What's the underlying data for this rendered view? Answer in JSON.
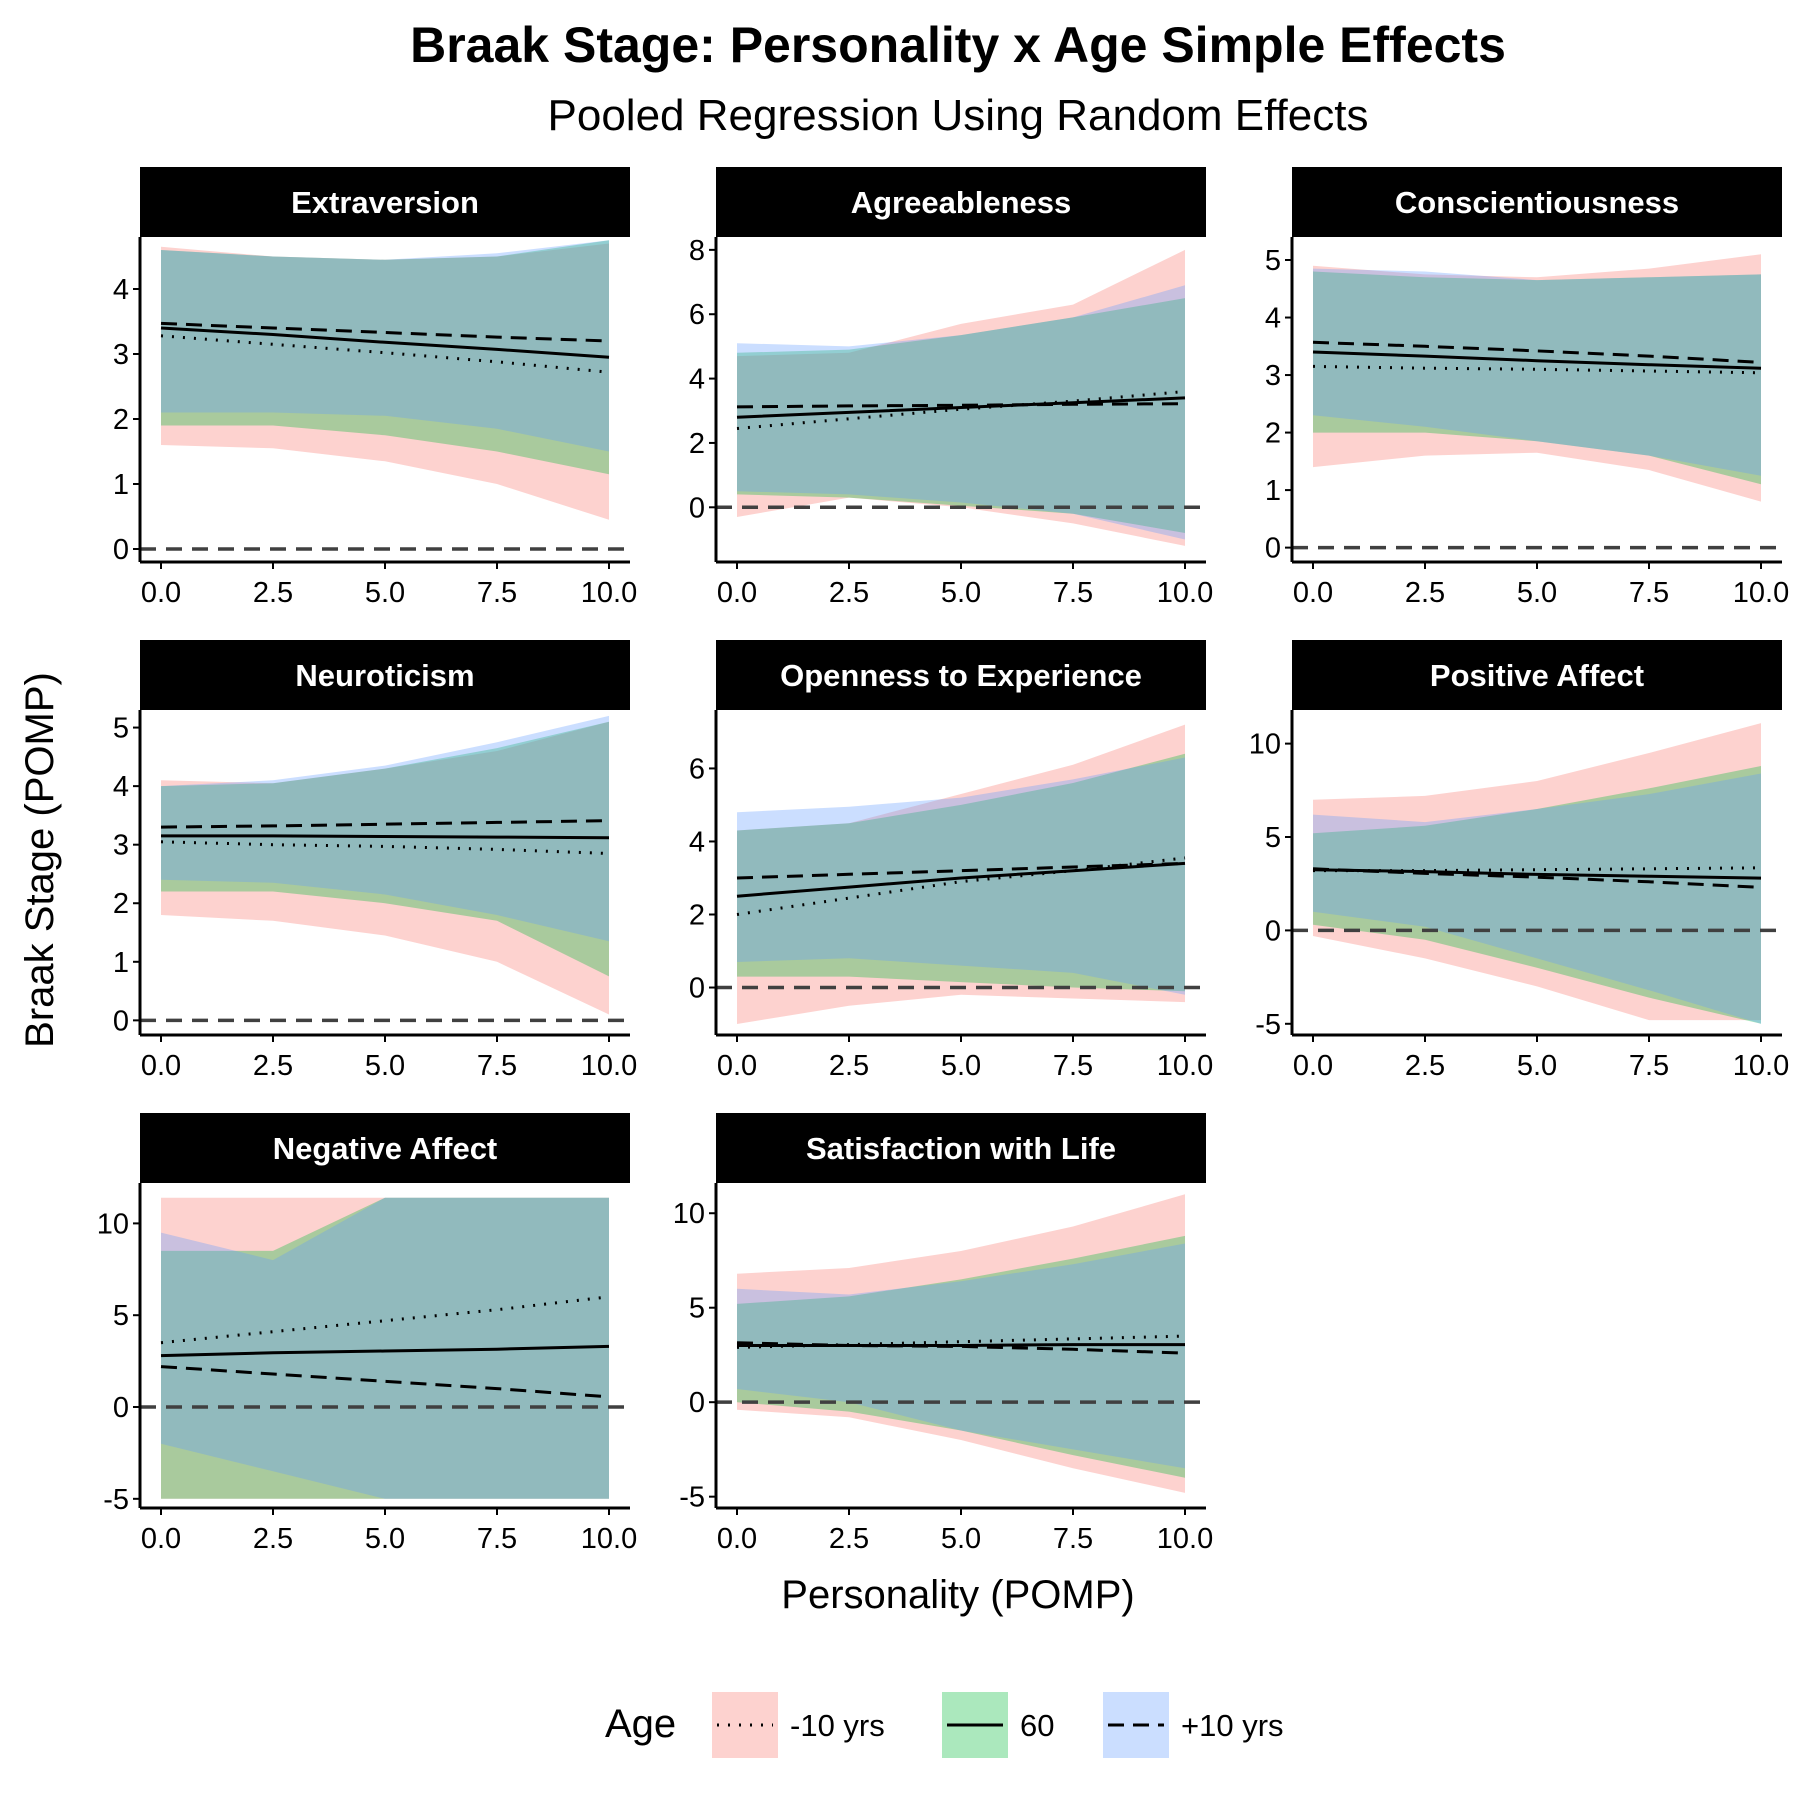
{
  "title": "Braak Stage: Personality x Age Simple Effects",
  "subtitle": "Pooled Regression Using Random Effects",
  "xlabel": "Personality (POMP)",
  "ylabel": "Braak Stage (POMP)",
  "legend": {
    "title": "Age",
    "items": [
      {
        "label": "-10 yrs",
        "linetype": "dotted",
        "fill": "#f8766d"
      },
      {
        "label": "60",
        "linetype": "solid",
        "fill": "#00ba38"
      },
      {
        "label": "+10 yrs",
        "linetype": "dashed",
        "fill": "#619cff"
      }
    ]
  },
  "colors": {
    "ribbon_minus10": "#f8766d",
    "ribbon_60": "#00ba38",
    "ribbon_plus10": "#619cff",
    "strip_bg": "#000000",
    "strip_text": "#ffffff",
    "zero_line": "#404040"
  },
  "chart_data": [
    {
      "type": "line",
      "panel": "Extraversion",
      "xlim": [
        0,
        10
      ],
      "ylim": [
        -0.2,
        4.8
      ],
      "y_ticks": [
        0,
        1,
        2,
        3,
        4
      ],
      "x_ticks": [
        0,
        2.5,
        5,
        7.5,
        10
      ],
      "x_tick_labels": [
        "0.0",
        "2.5",
        "5.0",
        "7.5",
        "10.0"
      ],
      "x": [
        0,
        2.5,
        5,
        7.5,
        10
      ],
      "series": [
        {
          "name": "-10 yrs",
          "line": [
            3.28,
            3.15,
            3.02,
            2.88,
            2.72
          ],
          "lower": [
            1.6,
            1.55,
            1.35,
            1.0,
            0.45
          ],
          "upper": [
            4.65,
            4.5,
            4.45,
            4.5,
            4.7
          ]
        },
        {
          "name": "60",
          "line": [
            3.4,
            3.3,
            3.18,
            3.07,
            2.95
          ],
          "lower": [
            1.9,
            1.9,
            1.75,
            1.5,
            1.15
          ],
          "upper": [
            4.6,
            4.5,
            4.45,
            4.5,
            4.75
          ]
        },
        {
          "name": "+10 yrs",
          "line": [
            3.47,
            3.4,
            3.33,
            3.26,
            3.2
          ],
          "lower": [
            2.1,
            2.1,
            2.05,
            1.85,
            1.5
          ],
          "upper": [
            4.6,
            4.5,
            4.45,
            4.55,
            4.75
          ]
        }
      ]
    },
    {
      "type": "line",
      "panel": "Agreeableness",
      "xlim": [
        0,
        10
      ],
      "ylim": [
        -1.7,
        8.4
      ],
      "y_ticks": [
        0,
        2,
        4,
        6,
        8
      ],
      "x_ticks": [
        0,
        2.5,
        5,
        7.5,
        10
      ],
      "x_tick_labels": [
        "0.0",
        "2.5",
        "5.0",
        "7.5",
        "10.0"
      ],
      "x": [
        0,
        2.5,
        5,
        7.5,
        10
      ],
      "series": [
        {
          "name": "-10 yrs",
          "line": [
            2.45,
            2.75,
            3.05,
            3.3,
            3.6
          ],
          "lower": [
            -0.3,
            0.3,
            0.0,
            -0.5,
            -1.2
          ],
          "upper": [
            4.7,
            4.8,
            5.7,
            6.3,
            8.0
          ]
        },
        {
          "name": "60",
          "line": [
            2.8,
            2.95,
            3.1,
            3.25,
            3.4
          ],
          "lower": [
            0.4,
            0.3,
            0.05,
            -0.2,
            -0.8
          ],
          "upper": [
            4.8,
            4.9,
            5.35,
            5.9,
            6.5
          ]
        },
        {
          "name": "+10 yrs",
          "line": [
            3.12,
            3.15,
            3.17,
            3.2,
            3.22
          ],
          "lower": [
            0.5,
            0.4,
            0.15,
            -0.2,
            -1.0
          ],
          "upper": [
            5.1,
            5.0,
            5.35,
            5.9,
            6.9
          ]
        }
      ]
    },
    {
      "type": "line",
      "panel": "Conscientiousness",
      "xlim": [
        0,
        10
      ],
      "ylim": [
        -0.25,
        5.4
      ],
      "y_ticks": [
        0,
        1,
        2,
        3,
        4,
        5
      ],
      "x_ticks": [
        0,
        2.5,
        5,
        7.5,
        10
      ],
      "x_tick_labels": [
        "0.0",
        "2.5",
        "5.0",
        "7.5",
        "10.0"
      ],
      "x": [
        0,
        2.5,
        5,
        7.5,
        10
      ],
      "series": [
        {
          "name": "-10 yrs",
          "line": [
            3.15,
            3.12,
            3.1,
            3.07,
            3.04
          ],
          "lower": [
            1.4,
            1.6,
            1.65,
            1.35,
            0.8
          ],
          "upper": [
            4.9,
            4.75,
            4.7,
            4.85,
            5.1
          ]
        },
        {
          "name": "60",
          "line": [
            3.4,
            3.33,
            3.25,
            3.18,
            3.12
          ],
          "lower": [
            2.0,
            2.0,
            1.85,
            1.6,
            1.1
          ],
          "upper": [
            4.8,
            4.7,
            4.65,
            4.7,
            4.75
          ]
        },
        {
          "name": "+10 yrs",
          "line": [
            3.57,
            3.5,
            3.42,
            3.33,
            3.22
          ],
          "lower": [
            2.3,
            2.1,
            1.85,
            1.6,
            1.25
          ],
          "upper": [
            4.85,
            4.8,
            4.65,
            4.7,
            4.75
          ]
        }
      ]
    },
    {
      "type": "line",
      "panel": "Neuroticism",
      "xlim": [
        0,
        10
      ],
      "ylim": [
        -0.25,
        5.3
      ],
      "y_ticks": [
        0,
        1,
        2,
        3,
        4,
        5
      ],
      "x_ticks": [
        0,
        2.5,
        5,
        7.5,
        10
      ],
      "x_tick_labels": [
        "0.0",
        "2.5",
        "5.0",
        "7.5",
        "10.0"
      ],
      "x": [
        0,
        2.5,
        5,
        7.5,
        10
      ],
      "series": [
        {
          "name": "-10 yrs",
          "line": [
            3.05,
            3.0,
            2.97,
            2.92,
            2.85
          ],
          "lower": [
            1.8,
            1.7,
            1.45,
            1.0,
            0.1
          ],
          "upper": [
            4.1,
            4.05,
            4.3,
            4.6,
            5.1
          ]
        },
        {
          "name": "60",
          "line": [
            3.15,
            3.15,
            3.14,
            3.13,
            3.12
          ],
          "lower": [
            2.2,
            2.2,
            2.0,
            1.7,
            0.75
          ],
          "upper": [
            4.0,
            4.05,
            4.3,
            4.65,
            5.1
          ]
        },
        {
          "name": "+10 yrs",
          "line": [
            3.3,
            3.32,
            3.35,
            3.38,
            3.41
          ],
          "lower": [
            2.4,
            2.35,
            2.15,
            1.8,
            1.35
          ],
          "upper": [
            4.0,
            4.1,
            4.35,
            4.75,
            5.2
          ]
        }
      ]
    },
    {
      "type": "line",
      "panel": "Openness to Experience",
      "xlim": [
        0,
        10
      ],
      "ylim": [
        -1.3,
        7.6
      ],
      "y_ticks": [
        0,
        2,
        4,
        6
      ],
      "x_ticks": [
        0,
        2.5,
        5,
        7.5,
        10
      ],
      "x_tick_labels": [
        "0.0",
        "2.5",
        "5.0",
        "7.5",
        "10.0"
      ],
      "x": [
        0,
        2.5,
        5,
        7.5,
        10
      ],
      "series": [
        {
          "name": "-10 yrs",
          "line": [
            2.0,
            2.45,
            2.9,
            3.2,
            3.55
          ],
          "lower": [
            -1.0,
            -0.5,
            -0.2,
            -0.3,
            -0.4
          ],
          "upper": [
            4.3,
            4.5,
            5.3,
            6.1,
            7.2
          ]
        },
        {
          "name": "60",
          "line": [
            2.5,
            2.75,
            3.0,
            3.2,
            3.4
          ],
          "lower": [
            0.3,
            0.3,
            0.15,
            0.0,
            -0.1
          ],
          "upper": [
            4.3,
            4.5,
            5.0,
            5.6,
            6.4
          ]
        },
        {
          "name": "+10 yrs",
          "line": [
            3.0,
            3.1,
            3.2,
            3.3,
            3.4
          ],
          "lower": [
            0.7,
            0.8,
            0.6,
            0.4,
            -0.2
          ],
          "upper": [
            4.8,
            4.95,
            5.2,
            5.7,
            6.3
          ]
        }
      ]
    },
    {
      "type": "line",
      "panel": "Positive Affect",
      "xlim": [
        0,
        10
      ],
      "ylim": [
        -5.6,
        11.8
      ],
      "y_ticks": [
        -5,
        0,
        5,
        10
      ],
      "x_ticks": [
        0,
        2.5,
        5,
        7.5,
        10
      ],
      "x_tick_labels": [
        "0.0",
        "2.5",
        "5.0",
        "7.5",
        "10.0"
      ],
      "x": [
        0,
        2.5,
        5,
        7.5,
        10
      ],
      "series": [
        {
          "name": "-10 yrs",
          "line": [
            3.2,
            3.2,
            3.25,
            3.3,
            3.35
          ],
          "lower": [
            -0.3,
            -1.5,
            -3.0,
            -4.8,
            -4.8
          ],
          "upper": [
            7.0,
            7.2,
            8.0,
            9.5,
            11.1
          ]
        },
        {
          "name": "60",
          "line": [
            3.25,
            3.15,
            3.0,
            2.9,
            2.8
          ],
          "lower": [
            0.3,
            -0.5,
            -2.0,
            -3.6,
            -5.0
          ],
          "upper": [
            5.2,
            5.6,
            6.5,
            7.6,
            8.8
          ]
        },
        {
          "name": "+10 yrs",
          "line": [
            3.3,
            3.05,
            2.85,
            2.6,
            2.3
          ],
          "lower": [
            1.0,
            0.2,
            -1.5,
            -3.2,
            -5.0
          ],
          "upper": [
            6.2,
            5.8,
            6.5,
            7.3,
            8.4
          ]
        }
      ]
    },
    {
      "type": "line",
      "panel": "Negative Affect",
      "xlim": [
        0,
        10
      ],
      "ylim": [
        -5.5,
        12.2
      ],
      "y_ticks": [
        -5,
        0,
        5,
        10
      ],
      "x_ticks": [
        0,
        2.5,
        5,
        7.5,
        10
      ],
      "x_tick_labels": [
        "0.0",
        "2.5",
        "5.0",
        "7.5",
        "10.0"
      ],
      "x": [
        0,
        2.5,
        5,
        7.5,
        10
      ],
      "series": [
        {
          "name": "-10 yrs",
          "line": [
            3.5,
            4.1,
            4.7,
            5.3,
            6.0
          ],
          "lower": [
            -5.0,
            -5.0,
            -5.0,
            -5.0,
            -5.0
          ],
          "upper": [
            11.4,
            11.4,
            11.4,
            11.4,
            11.4
          ]
        },
        {
          "name": "60",
          "line": [
            2.8,
            2.95,
            3.05,
            3.15,
            3.3
          ],
          "lower": [
            -5.0,
            -5.0,
            -5.0,
            -5.0,
            -5.0
          ],
          "upper": [
            8.5,
            8.5,
            11.4,
            11.4,
            11.4
          ]
        },
        {
          "name": "+10 yrs",
          "line": [
            2.2,
            1.8,
            1.4,
            1.0,
            0.55
          ],
          "lower": [
            -2.0,
            -3.5,
            -5.0,
            -5.0,
            -5.0
          ],
          "upper": [
            9.5,
            8.0,
            11.4,
            11.4,
            11.4
          ]
        }
      ]
    },
    {
      "type": "line",
      "panel": "Satisfaction with Life",
      "xlim": [
        0,
        10
      ],
      "ylim": [
        -5.6,
        11.6
      ],
      "y_ticks": [
        -5,
        0,
        5,
        10
      ],
      "x_ticks": [
        0,
        2.5,
        5,
        7.5,
        10
      ],
      "x_tick_labels": [
        "0.0",
        "2.5",
        "5.0",
        "7.5",
        "10.0"
      ],
      "x": [
        0,
        2.5,
        5,
        7.5,
        10
      ],
      "series": [
        {
          "name": "-10 yrs",
          "line": [
            2.9,
            3.05,
            3.2,
            3.35,
            3.5
          ],
          "lower": [
            -0.4,
            -0.8,
            -2.0,
            -3.5,
            -4.8
          ],
          "upper": [
            6.8,
            7.1,
            8.0,
            9.3,
            11.0
          ]
        },
        {
          "name": "60",
          "line": [
            3.0,
            3.0,
            3.0,
            3.05,
            3.05
          ],
          "lower": [
            0.0,
            -0.5,
            -1.5,
            -2.8,
            -4.0
          ],
          "upper": [
            5.2,
            5.6,
            6.5,
            7.6,
            8.8
          ]
        },
        {
          "name": "+10 yrs",
          "line": [
            3.15,
            3.0,
            2.95,
            2.8,
            2.6
          ],
          "lower": [
            0.7,
            0.0,
            -1.5,
            -2.5,
            -3.5
          ],
          "upper": [
            6.0,
            5.7,
            6.4,
            7.3,
            8.4
          ]
        }
      ]
    }
  ]
}
